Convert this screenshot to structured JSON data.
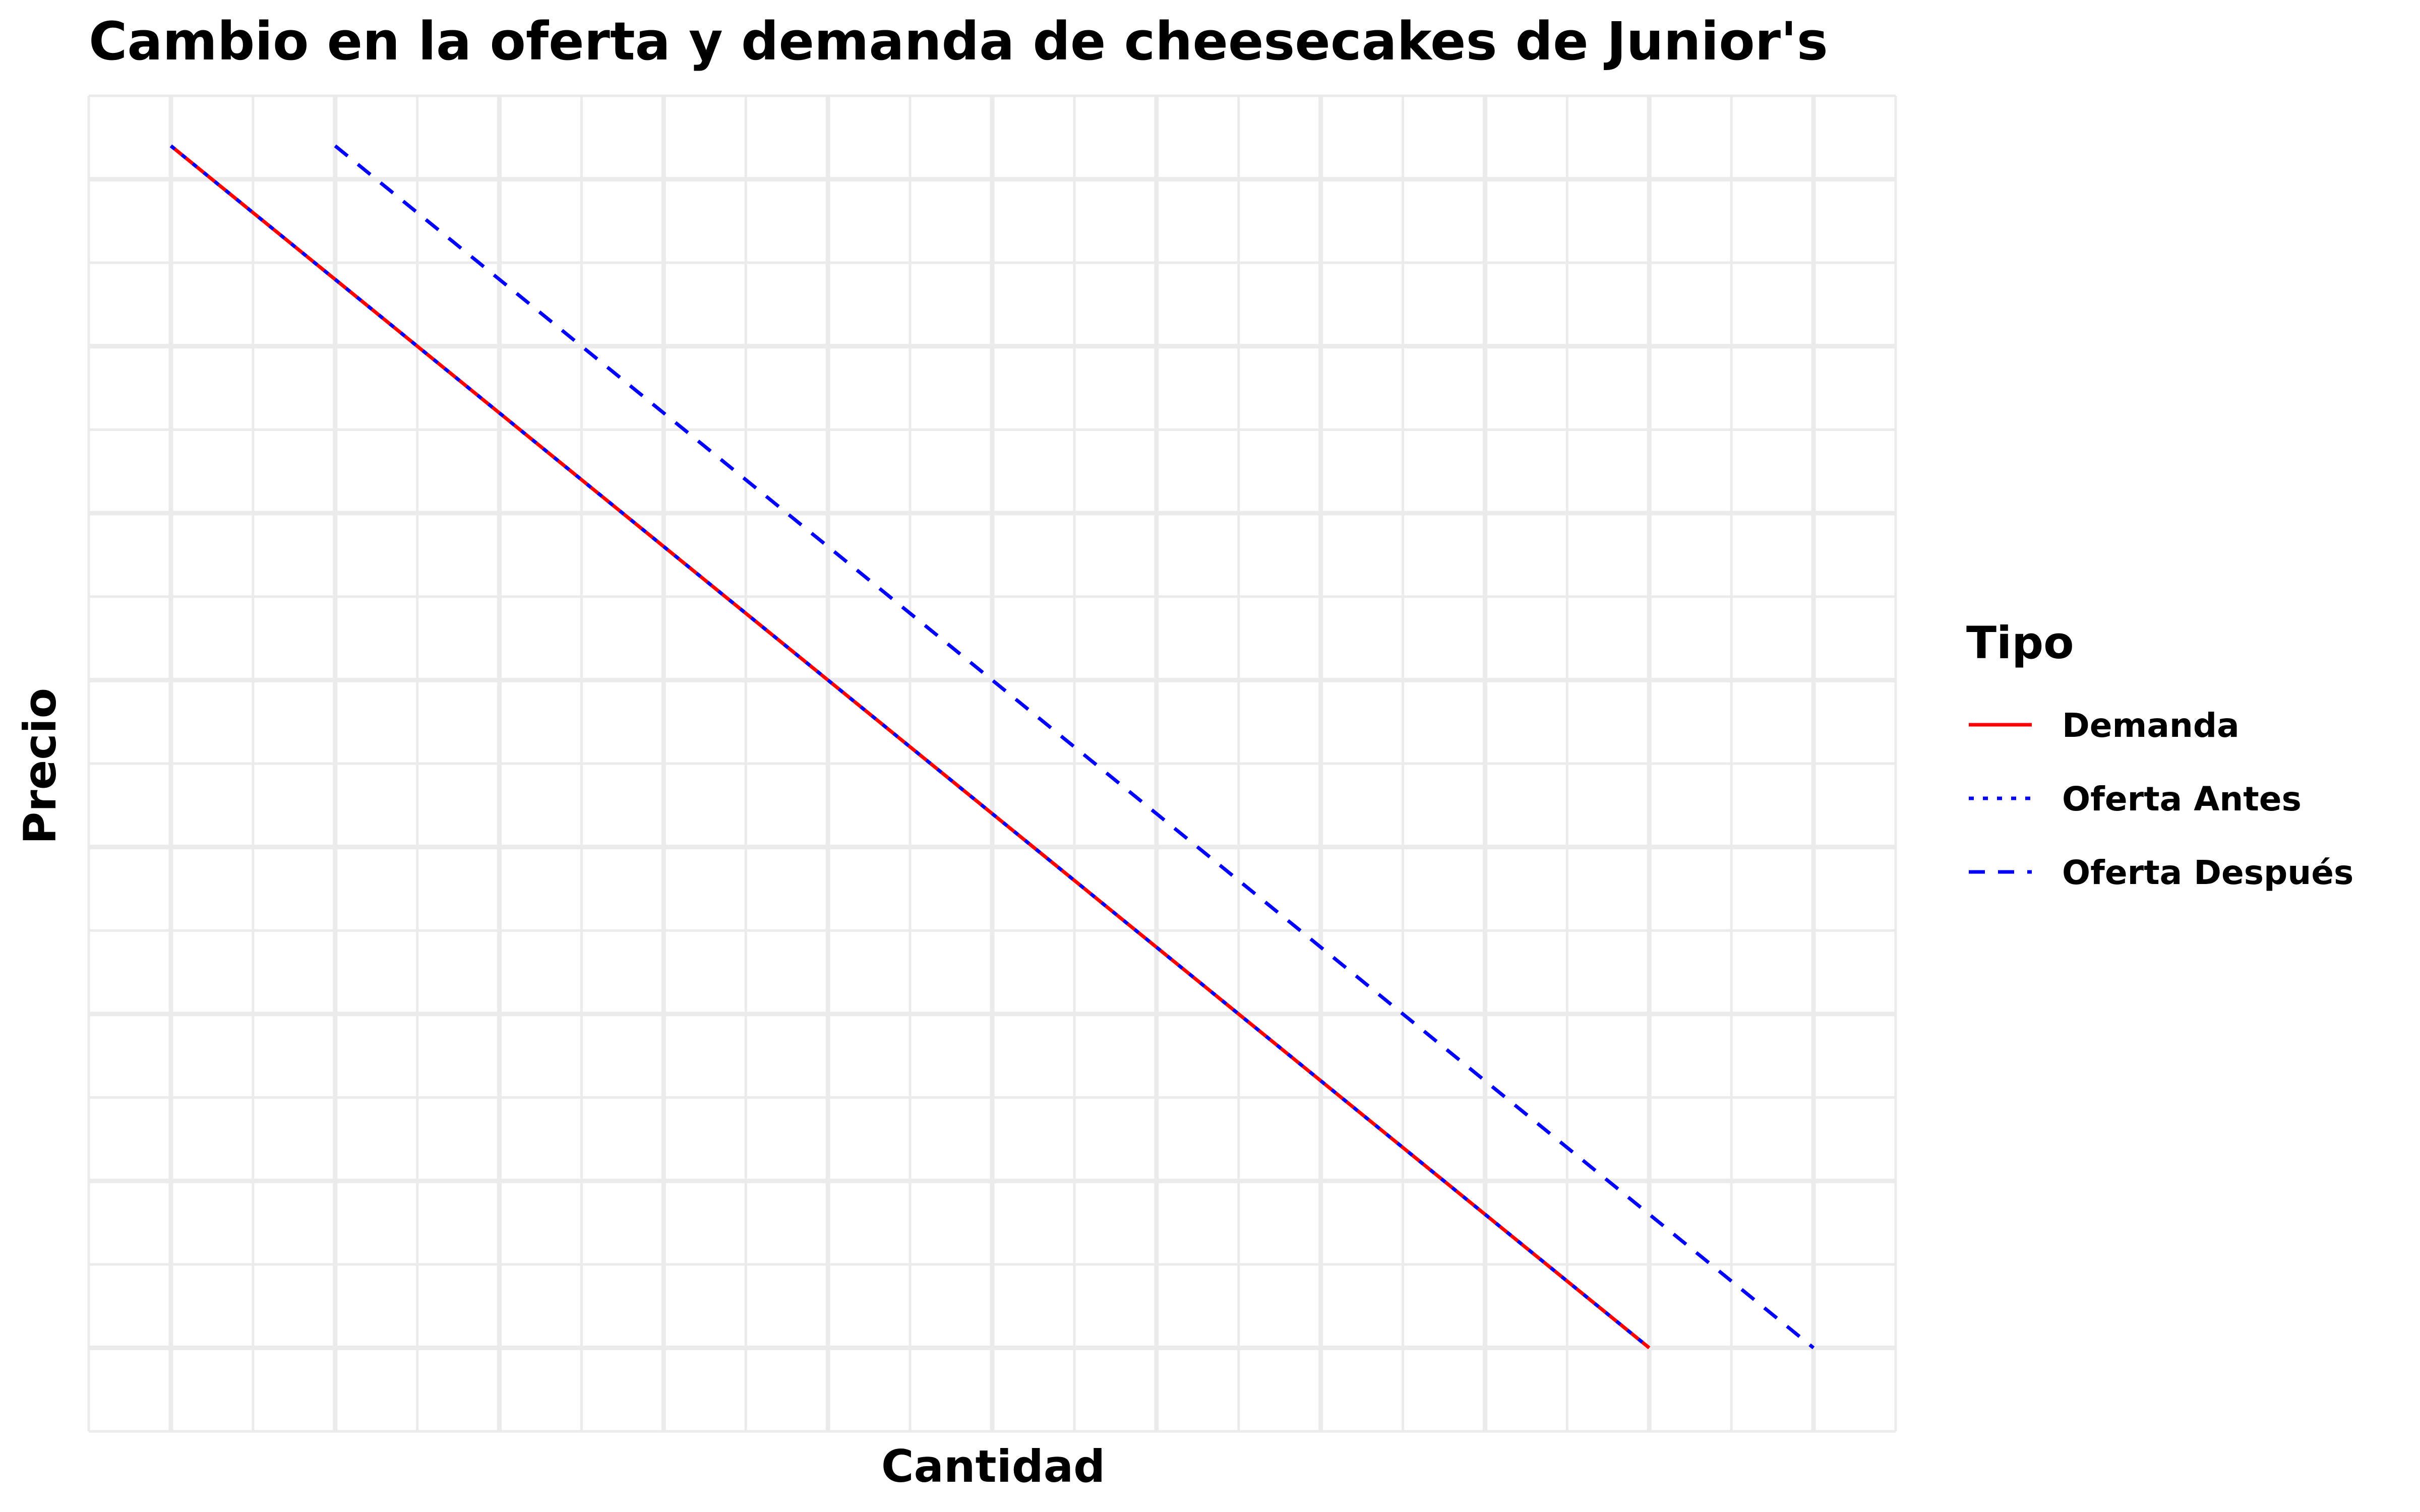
{
  "chart_data": {
    "type": "line",
    "title": "Cambio en la oferta y demanda de cheesecakes de Junior's",
    "xlabel": "Cantidad",
    "ylabel": "Precio",
    "xlim": [
      -0.5,
      10.5
    ],
    "ylim": [
      -0.5,
      7.5
    ],
    "grid": true,
    "legend": {
      "title": "Tipo",
      "placement": "right"
    },
    "series": [
      {
        "name": "Demanda",
        "color": "#ff0000",
        "linestyle": "solid",
        "x": [
          0,
          9
        ],
        "y": [
          7.2,
          0
        ]
      },
      {
        "name": "Oferta Antes",
        "color": "#0000ff",
        "linestyle": "dotted",
        "x": [
          0,
          9
        ],
        "y": [
          7.2,
          0
        ]
      },
      {
        "name": "Oferta Después",
        "color": "#0000ff",
        "linestyle": "dashed",
        "x": [
          1,
          10
        ],
        "y": [
          7.2,
          0
        ]
      }
    ]
  }
}
